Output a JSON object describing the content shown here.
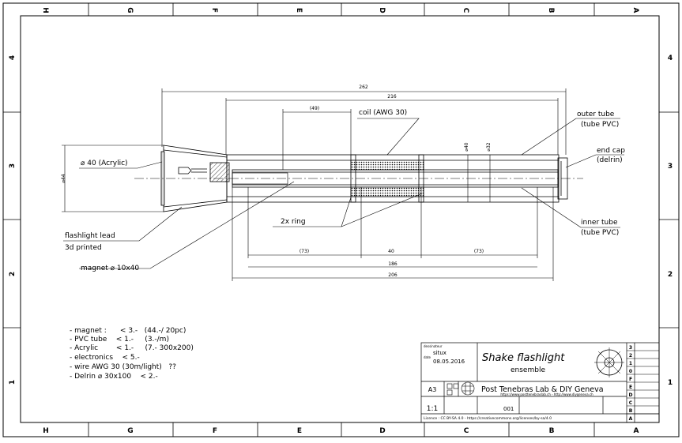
{
  "frame": {
    "columns": [
      "H",
      "G",
      "F",
      "E",
      "D",
      "C",
      "B",
      "A"
    ],
    "rows": [
      "4",
      "3",
      "2",
      "1"
    ]
  },
  "dimensions": {
    "overall": "262",
    "coil_tube": "216",
    "coil": "(49)",
    "dia_outer": "⌀40",
    "dia_inner": "⌀32",
    "head_dia": "⌀44",
    "left_seg": "(73)",
    "center_seg": "40",
    "right_seg": "(73)",
    "inner_len": "186",
    "total_inner": "206"
  },
  "labels": {
    "coil": "coil (AWG 30)",
    "outer_tube_1": "outer tube",
    "outer_tube_2": "(tube PVC)",
    "end_cap_1": "end cap",
    "end_cap_2": "(delrin)",
    "acrylic": "⌀ 40 (Acrylic)",
    "ring": "2x ring",
    "inner_tube_1": "inner tube",
    "inner_tube_2": "(tube PVC)",
    "flashlight_1": "flashlight lead",
    "flashlight_2": "3d printed",
    "magnet": "magnet ⌀ 10x40"
  },
  "bom": [
    "- magnet :      < 3.-   (44.-/ 20pc)",
    "- PVC tube    < 1.-     (3.-/m)",
    "- Acrylic        < 1.-     (7.- 300x200)",
    "- electronics    < 5.-",
    "- wire AWG 30 (30m/light)   ??",
    "- Delrin ⌀ 30x100    < 2.-"
  ],
  "title_block": {
    "designer_label": "dessinateur",
    "author": "situx",
    "date_label": "date",
    "date": "08.05.2016",
    "title": "Shake flashlight",
    "subtitle": "ensemble",
    "format": "A3",
    "lab": "Post Tenebras Lab & DIY Geneva",
    "urls": "https://www.posttenebraslab.ch  -  http://www.diygeneva.ch",
    "scale": "1:1",
    "number": "001",
    "license": "Licence :  CC BY-SA 4.0  -  https://creativecommons.org/licenses/by-sa/4.0",
    "rev_rows": [
      "3",
      "2",
      "1",
      "0",
      "F",
      "E",
      "D",
      "C",
      "B",
      "A"
    ]
  }
}
